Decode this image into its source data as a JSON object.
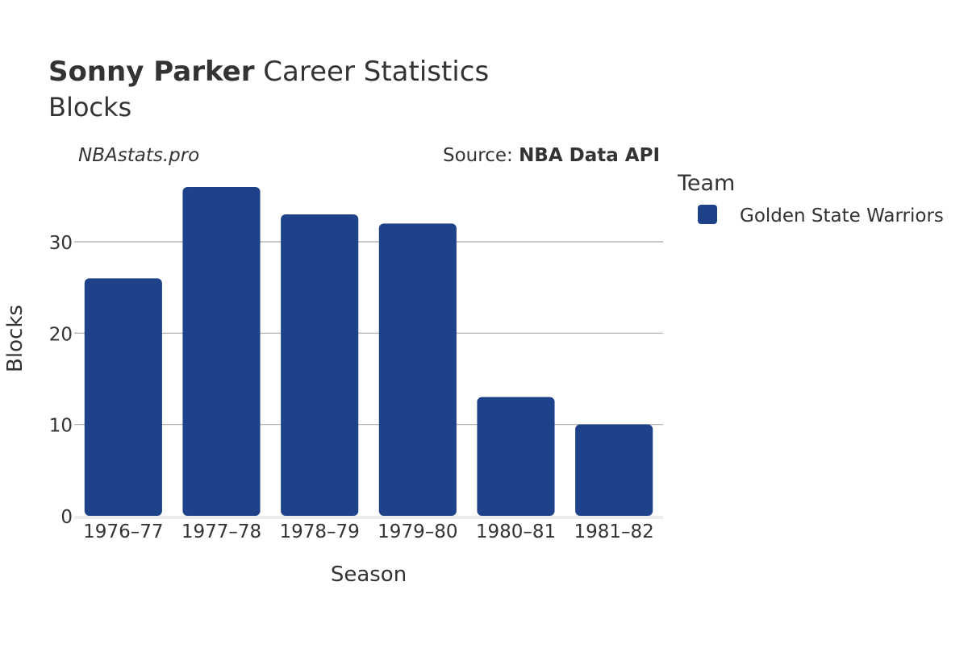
{
  "chart_data": {
    "type": "bar",
    "title_bold": "Sonny Parker",
    "title_rest": " Career Statistics",
    "subtitle": "Blocks",
    "watermark": "NBAstats.pro",
    "source_prefix": "Source: ",
    "source_name": "NBA Data API",
    "xlabel": "Season",
    "ylabel": "Blocks",
    "categories": [
      "1976–77",
      "1977–78",
      "1978–79",
      "1979–80",
      "1980–81",
      "1981–82"
    ],
    "series": [
      {
        "name": "Golden State Warriors",
        "values": [
          26,
          36,
          33,
          32,
          13,
          10
        ],
        "color": "#1d428a"
      }
    ],
    "yticks": [
      0,
      10,
      20,
      30
    ],
    "ylim": [
      0,
      37.5
    ],
    "grid": true,
    "legend": {
      "title": "Team",
      "placement": "right"
    }
  }
}
